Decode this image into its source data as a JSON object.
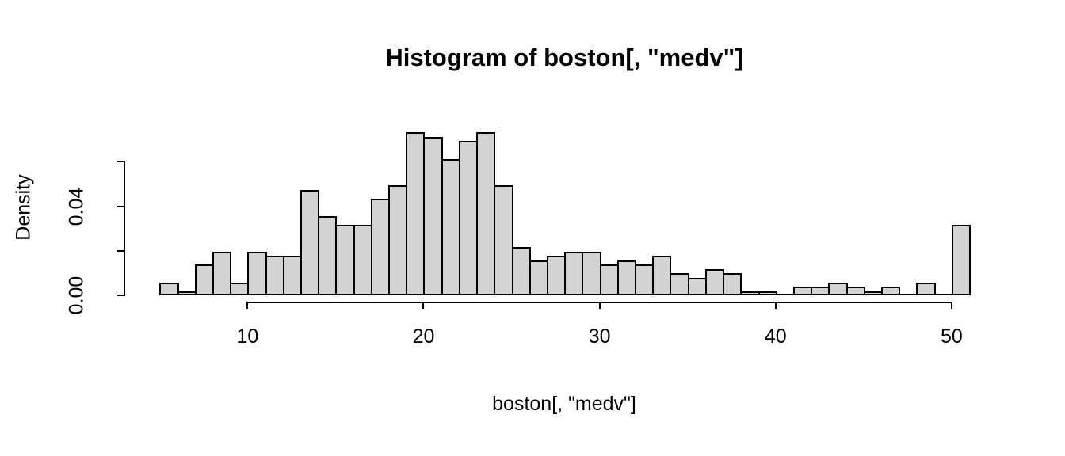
{
  "title": "Histogram of boston[, \"medv\"]",
  "chart_data": {
    "type": "bar",
    "subtype": "histogram",
    "title": "Histogram of boston[, \"medv\"]",
    "xlabel": "boston[, \"medv\"]",
    "ylabel": "Density",
    "xlim": [
      5,
      51
    ],
    "ylim": [
      0,
      0.075
    ],
    "bin_width": 1,
    "n_total": 506,
    "bin_starts": [
      5,
      6,
      7,
      8,
      9,
      10,
      11,
      12,
      13,
      14,
      15,
      16,
      17,
      18,
      19,
      20,
      21,
      22,
      23,
      24,
      25,
      26,
      27,
      28,
      29,
      30,
      31,
      32,
      33,
      34,
      35,
      36,
      37,
      38,
      39,
      40,
      41,
      42,
      43,
      44,
      45,
      46,
      47,
      48,
      49,
      50
    ],
    "counts": [
      3,
      1,
      7,
      10,
      3,
      10,
      9,
      9,
      24,
      18,
      16,
      16,
      22,
      25,
      37,
      36,
      31,
      35,
      37,
      25,
      11,
      8,
      9,
      10,
      10,
      7,
      8,
      7,
      9,
      5,
      4,
      6,
      5,
      1,
      1,
      0,
      2,
      2,
      3,
      2,
      1,
      2,
      0,
      3,
      0,
      16
    ],
    "densities": [
      0.00593,
      0.00198,
      0.01383,
      0.01976,
      0.00593,
      0.01976,
      0.01779,
      0.01779,
      0.04743,
      0.03557,
      0.03162,
      0.03162,
      0.04348,
      0.04941,
      0.07312,
      0.07115,
      0.06126,
      0.06917,
      0.07312,
      0.04941,
      0.02174,
      0.01581,
      0.01779,
      0.01976,
      0.01976,
      0.01383,
      0.01581,
      0.01383,
      0.01779,
      0.00988,
      0.00791,
      0.01186,
      0.00988,
      0.00198,
      0.00198,
      0,
      0.00395,
      0.00395,
      0.00593,
      0.00395,
      0.00198,
      0.00395,
      0,
      0.00593,
      0,
      0.03162
    ],
    "x_ticks": [
      10,
      20,
      30,
      40,
      50
    ],
    "x_tick_labels": [
      "10",
      "20",
      "30",
      "40",
      "50"
    ],
    "y_ticks": [
      0,
      0.02,
      0.04,
      0.06
    ],
    "y_tick_labels": [
      "0.00",
      "",
      "0.04",
      ""
    ],
    "grid": false,
    "legend": null,
    "bar_fill": "#d3d3d3",
    "bar_border": "#000000",
    "background": "#ffffff",
    "text_color": "#000000"
  }
}
